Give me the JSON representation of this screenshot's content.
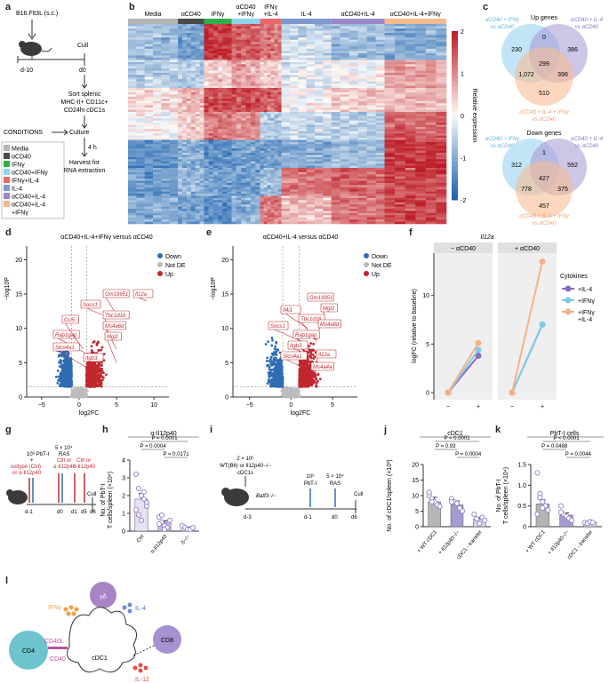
{
  "panel_labels": [
    "a",
    "b",
    "c",
    "d",
    "e",
    "f",
    "g",
    "h",
    "i",
    "j",
    "k",
    "l"
  ],
  "panel_a": {
    "tumor": "B16.Flt3L (s.c.)",
    "day_start": "d-10",
    "cull": "Cull",
    "day0": "d0",
    "sort_lines": [
      "Sort splenic",
      "MHC-II+ CD11c+",
      "CD24hi cDC1s"
    ],
    "conditions_label": "CONDITIONS",
    "culture": "Culture",
    "hours": "4 h",
    "harvest_lines": [
      "Harvest for",
      "RNA extraction"
    ],
    "legend": [
      {
        "label": "Media",
        "color": "#b5b5b5"
      },
      {
        "label": "αCD40",
        "color": "#4a4a4a"
      },
      {
        "label": "IFNγ",
        "color": "#2fae4a"
      },
      {
        "label": "αCD40+IFNγ",
        "color": "#8ed3ef"
      },
      {
        "label": "IFNγ+IL-4",
        "color": "#e9696a"
      },
      {
        "label": "IL-4",
        "color": "#7f98d2"
      },
      {
        "label": "αCD40+IL-4",
        "color": "#9a86c9"
      },
      {
        "label": "αCD40+IL-4",
        "color": "#f4b98f"
      },
      {
        "label": "+IFNγ",
        "color": ""
      }
    ]
  },
  "panel_b": {
    "groups": [
      "Media",
      "αCD40",
      "IFNγ",
      "αCD40\n+IFNγ",
      "IFNγ\n+IL-4",
      "IL-4",
      "αCD40+IL-4",
      "αCD40+IL-4+IFNγ"
    ],
    "group_lines": [
      [
        "Media"
      ],
      [
        "αCD40"
      ],
      [
        "IFNγ"
      ],
      [
        "αCD40",
        "+IFNγ"
      ],
      [
        "IFNγ",
        "+IL-4"
      ],
      [
        "IL-4"
      ],
      [
        "αCD40+IL-4"
      ],
      [
        "αCD40+IL-4+IFNγ"
      ]
    ],
    "colorbar_label": "Relative expression",
    "colorbar_ticks": [
      "2",
      "1",
      "0",
      "-1",
      "-2"
    ]
  },
  "panel_c": {
    "up": {
      "title": "Up genes",
      "set1": [
        "αCD40 + IFNγ",
        "vs αCD40"
      ],
      "set2": [
        "αCD40 + IL-4",
        "vs αCD40"
      ],
      "set3": [
        "αCD40 + IL-4 + IFNγ",
        "vs αCD40"
      ],
      "values": {
        "a": "230",
        "b": "386",
        "c": "510",
        "ab": "0",
        "ac": "1,072",
        "bc": "396",
        "abc": "299"
      }
    },
    "down": {
      "title": "Down genes",
      "set1": [
        "αCD40 + IFNγ",
        "vs αCD40"
      ],
      "set2": [
        "αCD40 + IL-4",
        "vs αCD40"
      ],
      "set3": [
        "αCD40 + IL-4 + IFNγ",
        "vs αCD40"
      ],
      "values": {
        "a": "312",
        "b": "592",
        "c": "457",
        "ab": "1",
        "ac": "778",
        "bc": "375",
        "abc": "427"
      }
    }
  },
  "panel_d": {
    "title": "αCD40+IL-4+IFNγ versus αCD40",
    "ylabel": "−log10P",
    "xlabel": "log2FC",
    "xticks": [
      "−5",
      "0",
      "5",
      "10"
    ],
    "yticks": [
      "0",
      "5",
      "10",
      "15",
      "20"
    ],
    "legend": [
      "Down",
      "Not DE",
      "Up"
    ],
    "genes": [
      "Il12a",
      "Gm19951",
      "Socs1",
      "Tbc1d16",
      "Ms4a6d",
      "Mgl2",
      "Rap1gap",
      "Slco4a1",
      "Itgb3",
      "Ccl5"
    ]
  },
  "panel_e": {
    "title": "αCD40+IL-4 versus αCD40",
    "ylabel": "−log10P",
    "xlabel": "log2FC",
    "xticks": [
      "−5",
      "0",
      "5"
    ],
    "yticks": [
      "0",
      "5",
      "10",
      "15",
      "20"
    ],
    "legend": [
      "Down",
      "Not DE",
      "Up"
    ],
    "genes": [
      "Gm19951",
      "Mgl2",
      "Il4i1",
      "Tbc1d16",
      "Ms4a6d",
      "Socs1",
      "Rap1gap",
      "Itgb3",
      "Il12a",
      "Slco4a1",
      "Ms4a4a"
    ]
  },
  "panel_f": {
    "title": "Il12a",
    "ylabel": "logFC (relative to baseline)",
    "facets": [
      "− αCD40",
      "+ αCD40"
    ],
    "xticks": [
      "−",
      "+"
    ],
    "yticks": [
      "0",
      "5",
      "10"
    ],
    "legend_title": "Cytokines",
    "legend": [
      {
        "label": "+IL-4",
        "color": "#8a6bc0"
      },
      {
        "label": "+IFNγ",
        "color": "#7fcbea"
      },
      {
        "label": "+IFNγ",
        "color": "#f4b286"
      },
      {
        "label": "+IL-4",
        "color": ""
      }
    ]
  },
  "panel_g": {
    "pbt": "10⁶ PbT-I",
    "plus": "+",
    "isotype": [
      "isotype (Ctrl)",
      "or α-Il12p40"
    ],
    "ras": [
      "5 × 10⁴",
      "RAS"
    ],
    "ras_treat": [
      "Ctrl or",
      "α-Il12p40"
    ],
    "treat2": [
      "Ctrl or",
      "α-Il12p40"
    ],
    "days": [
      "d-1",
      "d0",
      "d1",
      "d5",
      "d6"
    ],
    "cull": "Cull"
  },
  "panel_h": {
    "title": "α-Il12p40",
    "ylabel": [
      "No. of PbT-I",
      "T cells/spleen (×10⁴)"
    ],
    "categories": [
      "Ctrl",
      "α-Il12p40",
      "δ−/−"
    ],
    "yticks": [
      "0",
      "1",
      "2",
      "3",
      "4"
    ],
    "stats": [
      "P = 0.0001",
      "P = 0.0004",
      "P = 0.0171"
    ]
  },
  "panel_i": {
    "donor": [
      "2 × 10⁶",
      "WT(B6) or Il12p40−/−",
      "cDC1s"
    ],
    "recipient": "Batf3−/−",
    "pbt": [
      "10⁶",
      "PbT-I"
    ],
    "ras": [
      "5 × 10⁴",
      "RAS"
    ],
    "cull": "Cull",
    "days": [
      "d-3",
      "d-1",
      "d0",
      "d6"
    ]
  },
  "panel_j": {
    "title": "cDC1",
    "ylabel": "No. of cDC1/spleen (×10³)",
    "categories": [
      "+ WT cDC1",
      "+ Il12p40−/−",
      "cDC1",
      "- transfer"
    ],
    "yticks": [
      "0",
      "5",
      "10",
      "15",
      "20"
    ],
    "stats": [
      "P = 0.0001",
      "P = 0.93",
      "P = 0.0004"
    ]
  },
  "panel_k": {
    "title": "PbT-I cells",
    "ylabel": [
      "No. of PbT-I",
      "T cells/spleen (×10⁴)"
    ],
    "categories": [
      "+ WT cDC1",
      "+ Il12p40−/−",
      "cDC1",
      "- transfer"
    ],
    "yticks": [
      "0",
      "0.5",
      "1.0",
      "1.5"
    ],
    "stats": [
      "P < 0.0001",
      "P = 0.0488",
      "P = 0.0044"
    ]
  },
  "panel_l": {
    "cells": [
      "γδ",
      "CD4",
      "CD8",
      "cDC1"
    ],
    "labels": [
      "IFNγ",
      "IL-4",
      "CD40L",
      "CD40",
      "IL-12"
    ]
  },
  "colors": {
    "down": "#2f6db3",
    "up": "#c0282e",
    "notde": "#bdbdbd",
    "heat_red": "#c3272b",
    "heat_blue": "#2166ac"
  }
}
